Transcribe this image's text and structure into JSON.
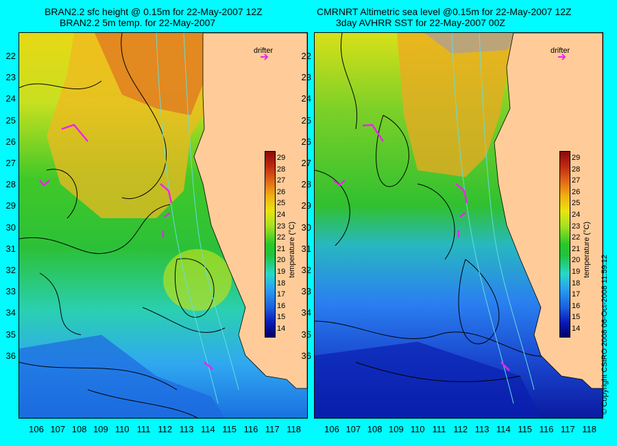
{
  "left_panel": {
    "title_line1": "BRAN2.2 sfc height @ 0.15m for 22-May-2007 12Z",
    "title_line2": "BRAN2.2 5m temp. for 22-May-2007",
    "drifter_label": "drifter"
  },
  "right_panel": {
    "title_line1": "CMRNRT Altimetric sea level  @0.15m  for 22-May-2007 12Z",
    "title_line2": "3day AVHRR SST for 22-May-2007 00Z",
    "drifter_label": "drifter"
  },
  "y_ticks": [
    "22",
    "23",
    "24",
    "25",
    "26",
    "27",
    "28",
    "29",
    "30",
    "31",
    "32",
    "33",
    "34",
    "35",
    "36"
  ],
  "x_ticks": [
    "106",
    "107",
    "108",
    "109",
    "110",
    "111",
    "112",
    "113",
    "114",
    "115",
    "116",
    "117",
    "118"
  ],
  "colorbar": {
    "ticks": [
      "29",
      "28",
      "27",
      "26",
      "25",
      "24",
      "23",
      "22",
      "21",
      "20",
      "19",
      "18",
      "17",
      "16",
      "15",
      "14"
    ],
    "label": "temperature (°C)",
    "range": [
      13.5,
      29.5
    ]
  },
  "copyright": "© Copyright CSIRO 2008   06-Oct-2008 11:59:12",
  "colors": {
    "background": "#00fcff",
    "land": "#ffcc99",
    "drifter": "#ee22ee",
    "contour": "#000000",
    "coastline": "#66dddd"
  }
}
